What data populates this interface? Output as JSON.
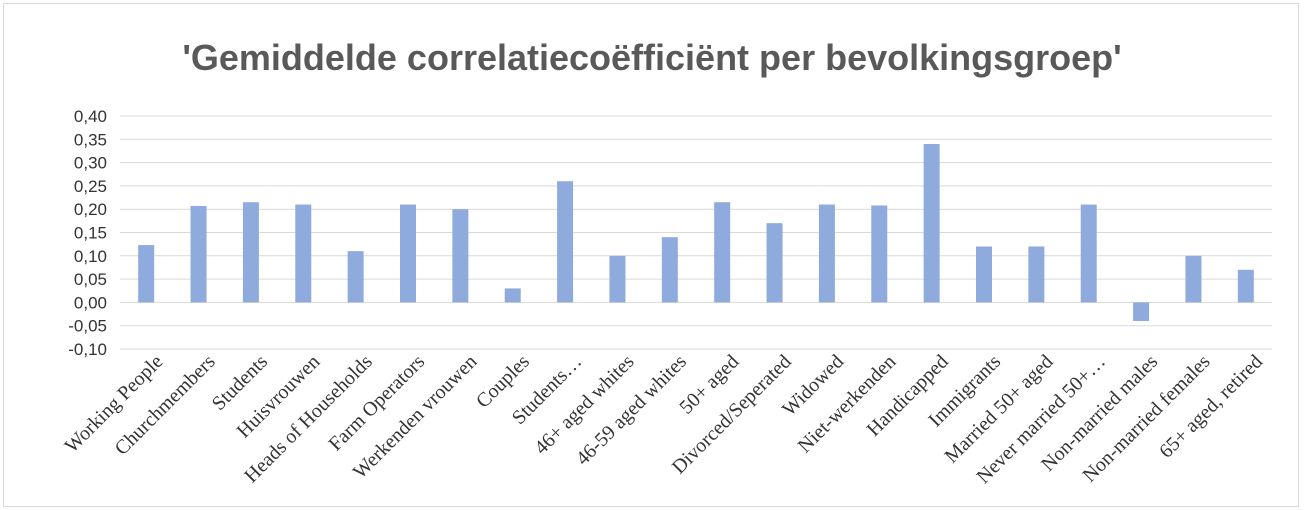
{
  "chart_data": {
    "type": "bar",
    "title": "'Gemiddelde correlatiecoëfficiënt per bevolkingsgroep'",
    "xlabel": "",
    "ylabel": "",
    "ylim": [
      -0.1,
      0.4
    ],
    "y_ticks": [
      "0,40",
      "0,35",
      "0,30",
      "0,25",
      "0,20",
      "0,15",
      "0,10",
      "0,05",
      "0,00",
      "-0,05",
      "-0,10"
    ],
    "grid": true,
    "legend": "none",
    "bar_color": "#8faadc",
    "categories": [
      "Working People",
      "Churchmembers",
      "Students",
      "Huisvrouwen",
      "Heads of Households",
      "Farm Operators",
      "Werkenden vrouwen",
      "Couples",
      "Students…",
      "46+ aged whites",
      "46-59 aged whites",
      "50+ aged",
      "Divorced/Seperated",
      "Widowed",
      "Niet-werkenden",
      "Handicapped",
      "Immigrants",
      "Married 50+ aged",
      "Never married 50+…",
      "Non-married males",
      "Non-married females",
      "65+ aged, retired"
    ],
    "values": [
      0.123,
      0.207,
      0.215,
      0.21,
      0.11,
      0.21,
      0.2,
      0.03,
      0.26,
      0.1,
      0.14,
      0.215,
      0.17,
      0.21,
      0.208,
      0.34,
      0.12,
      0.12,
      0.21,
      -0.04,
      0.1,
      0.07
    ]
  }
}
